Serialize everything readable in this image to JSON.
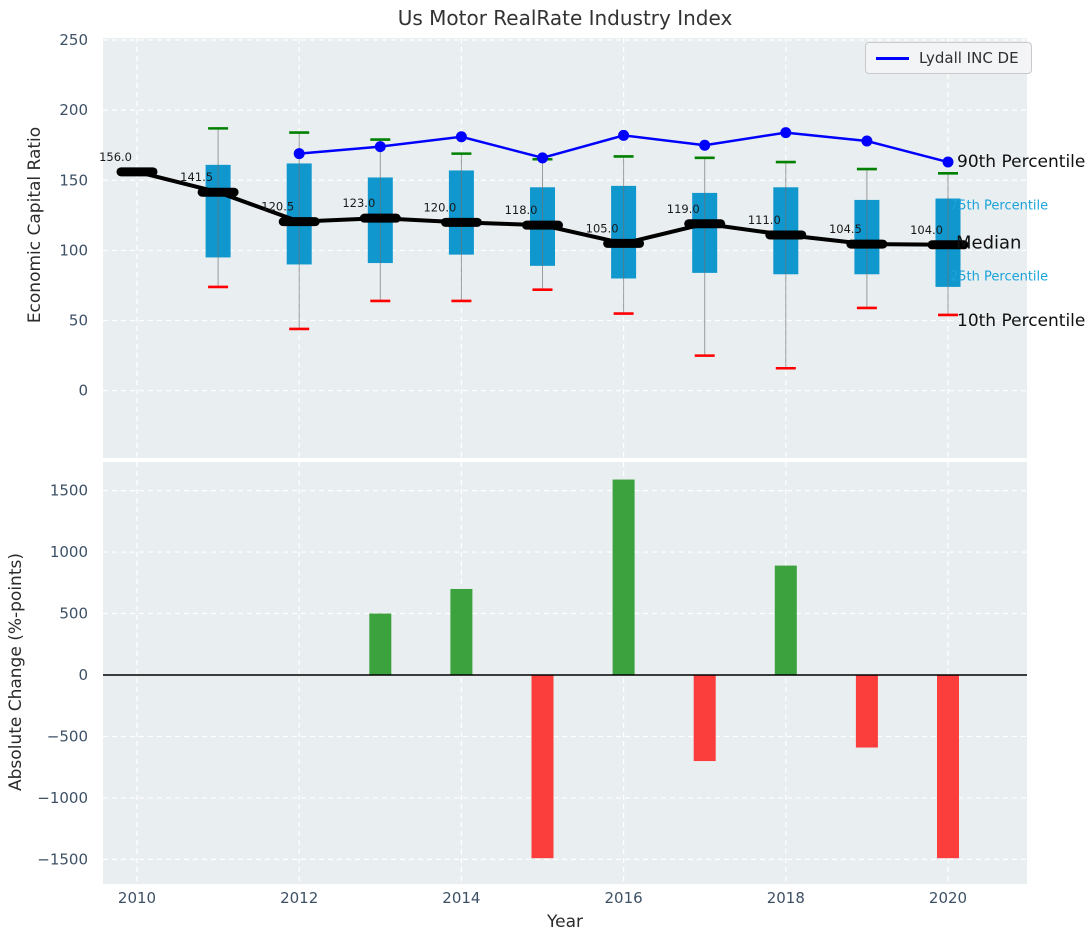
{
  "title": "Us Motor RealRate Industry Index",
  "legend": {
    "entries": [
      "Lydall INC DE"
    ],
    "position": "upper right"
  },
  "colors": {
    "plot_bg": "#e9eef0",
    "grid": "#ffffff",
    "tick": "#3d5166",
    "box_fill": "#1097ce",
    "whisker": "#6e6e6e",
    "cap_high": "#008000",
    "cap_low": "#ff0000",
    "median": "#000000",
    "company_line": "#0000ff",
    "bar_positive": "#3ba23e",
    "bar_negative": "#fb3d3c",
    "annotation_cyan": "#1ba3da",
    "zero_line": "#000000"
  },
  "chart_data": [
    {
      "type": "box-line",
      "title": "Us Motor RealRate Industry Index",
      "ylabel": "Economic Capital Ratio",
      "x": [
        2010,
        2011,
        2012,
        2013,
        2014,
        2015,
        2016,
        2017,
        2018,
        2019,
        2020
      ],
      "median": [
        156.0,
        141.5,
        120.5,
        123.0,
        120.0,
        118.0,
        105.0,
        119.0,
        111.0,
        104.5,
        104.0
      ],
      "median_labels": [
        "156.0",
        "141.5",
        "120.5",
        "123.0",
        "120.0",
        "118.0",
        "105.0",
        "119.0",
        "111.0",
        "104.5",
        "104.0"
      ],
      "q1": [
        null,
        95,
        90,
        91,
        97,
        89,
        80,
        84,
        83,
        83,
        74
      ],
      "q3": [
        null,
        161,
        162,
        152,
        157,
        145,
        146,
        141,
        145,
        136,
        137
      ],
      "p10": [
        null,
        74,
        44,
        64,
        64,
        72,
        55,
        25,
        16,
        59,
        54
      ],
      "p90": [
        null,
        187,
        184,
        179,
        169,
        165,
        167,
        166,
        163,
        158,
        155
      ],
      "series": [
        {
          "name": "Lydall INC DE",
          "x": [
            2012,
            2013,
            2014,
            2015,
            2016,
            2017,
            2018,
            2019,
            2020
          ],
          "values": [
            169,
            174,
            181,
            166,
            182,
            175,
            184,
            178,
            163
          ]
        }
      ],
      "ylim": [
        -48,
        251
      ],
      "yticks": [
        0,
        50,
        100,
        150,
        200,
        250
      ],
      "xgrid_years": [
        2010,
        2012,
        2014,
        2016,
        2018,
        2020
      ],
      "grid": true,
      "annotations": [
        {
          "text": "90th Percentile",
          "value": 163,
          "style": "black"
        },
        {
          "text": "75th Percentile",
          "value": 132,
          "style": "cyan"
        },
        {
          "text": "Median",
          "value": 105,
          "style": "median"
        },
        {
          "text": "25th Percentile",
          "value": 81,
          "style": "cyan"
        },
        {
          "text": "10th Percentile",
          "value": 50,
          "style": "black"
        }
      ]
    },
    {
      "type": "bar",
      "xlabel": "Year",
      "ylabel": "Absolute Change (%-points)",
      "x": [
        2013,
        2014,
        2015,
        2016,
        2017,
        2018,
        2019,
        2020
      ],
      "values": [
        500,
        700,
        -1490,
        1590,
        -700,
        890,
        -590,
        -1490
      ],
      "ylim": [
        -1700,
        1750
      ],
      "yticks": [
        -1500,
        -1000,
        -500,
        0,
        500,
        1000,
        1500
      ],
      "xticks": [
        2010,
        2012,
        2014,
        2016,
        2018,
        2020
      ],
      "grid": true
    }
  ]
}
